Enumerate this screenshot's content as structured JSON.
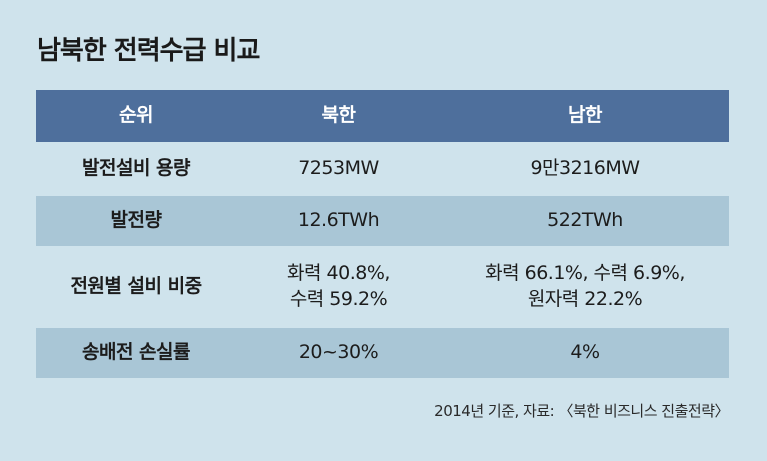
{
  "title": "남북한 전력수급 비교",
  "header": {
    "col1": "순위",
    "col2": "북한",
    "col3": "남한"
  },
  "rows": [
    {
      "label": "발전설비 용량",
      "north": "7253MW",
      "south": "9만3216MW"
    },
    {
      "label": "발전량",
      "north": "12.6TWh",
      "south": "522TWh"
    },
    {
      "label": "전원별 설비 비중",
      "north_line1": "화력 40.8%,",
      "north_line2": "수력 59.2%",
      "south_line1": "화력 66.1%, 수력 6.9%,",
      "south_line2": "원자력 22.2%"
    },
    {
      "label": "송배전 손실률",
      "north": "20~30%",
      "south": "4%"
    }
  ],
  "source": "2014년 기준, 자료: 〈북한 비즈니스 진출전략〉",
  "colors": {
    "background": "#cfe3ec",
    "header": "#4e6f9c",
    "row_tint": "#a9c6d6"
  }
}
